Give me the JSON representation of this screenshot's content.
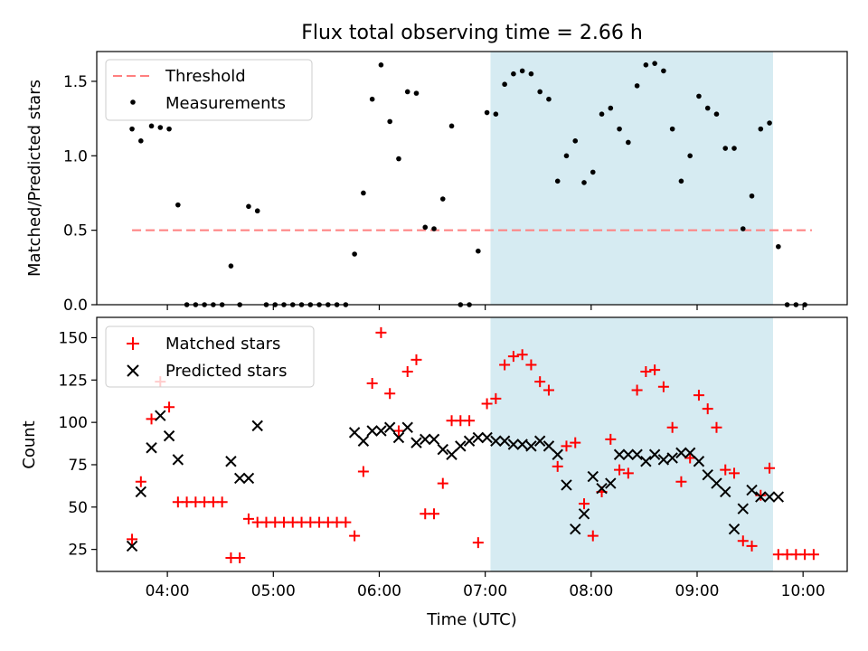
{
  "chart_data": [
    {
      "type": "scatter",
      "title": "Flux total observing time = 2.66 h",
      "xlabel": "",
      "ylabel": "Matched/Predicted stars",
      "x_unit": "time (UTC, hours)",
      "xlim": [
        "03:20",
        "10:25"
      ],
      "ylim": [
        0,
        1.7
      ],
      "yticks": [
        0.0,
        0.5,
        1.0,
        1.5
      ],
      "ytick_labels": [
        "0.0",
        "0.5",
        "1.0",
        "1.5"
      ],
      "highlight_span": {
        "x": [
          "07:03",
          "09:43"
        ],
        "color": "#add8e6"
      },
      "legend_position": "upper-left",
      "series": [
        {
          "name": "Threshold",
          "style": "dashed-line",
          "color": "#ff7f7f",
          "x": [
            "03:40",
            "10:05"
          ],
          "y": [
            0.5,
            0.5
          ]
        },
        {
          "name": "Measurements",
          "style": "dot",
          "color": "#000000",
          "x": [
            "03:40",
            "03:45",
            "03:51",
            "03:56",
            "04:01",
            "04:06",
            "04:11",
            "04:16",
            "04:21",
            "04:26",
            "04:31",
            "04:36",
            "04:41",
            "04:46",
            "04:51",
            "04:56",
            "05:01",
            "05:06",
            "05:11",
            "05:16",
            "05:21",
            "05:26",
            "05:31",
            "05:36",
            "05:41",
            "05:46",
            "05:51",
            "05:56",
            "06:01",
            "06:06",
            "06:11",
            "06:16",
            "06:21",
            "06:26",
            "06:31",
            "06:36",
            "06:41",
            "06:46",
            "06:51",
            "06:56",
            "07:01",
            "07:06",
            "07:11",
            "07:16",
            "07:21",
            "07:26",
            "07:31",
            "07:36",
            "07:41",
            "07:46",
            "07:51",
            "07:56",
            "08:01",
            "08:06",
            "08:11",
            "08:16",
            "08:21",
            "08:26",
            "08:31",
            "08:36",
            "08:41",
            "08:46",
            "08:51",
            "08:56",
            "09:01",
            "09:06",
            "09:11",
            "09:16",
            "09:21",
            "09:26",
            "09:31",
            "09:36",
            "09:41",
            "09:46",
            "09:51",
            "09:56",
            "10:01"
          ],
          "y": [
            1.18,
            1.1,
            1.2,
            1.19,
            1.18,
            0.67,
            0.0,
            0.0,
            0.0,
            0.0,
            0.0,
            0.26,
            0.0,
            0.66,
            0.63,
            0.0,
            0.0,
            0.0,
            0.0,
            0.0,
            0.0,
            0.0,
            0.0,
            0.0,
            0.0,
            0.34,
            0.75,
            1.38,
            1.61,
            1.23,
            0.98,
            1.43,
            1.42,
            0.52,
            0.51,
            0.71,
            1.2,
            0.0,
            0.0,
            0.36,
            1.29,
            1.28,
            1.48,
            1.55,
            1.57,
            1.55,
            1.43,
            1.38,
            0.83,
            1.0,
            1.1,
            0.82,
            0.89,
            1.28,
            1.32,
            1.18,
            1.09,
            1.47,
            1.61,
            1.62,
            1.57,
            1.18,
            0.83,
            1.0,
            1.4,
            1.32,
            1.28,
            1.05,
            1.05,
            0.51,
            0.73,
            1.18,
            1.22,
            0.39,
            0.0,
            0.0,
            0.0
          ]
        }
      ]
    },
    {
      "type": "scatter",
      "title": "",
      "xlabel": "Time (UTC)",
      "ylabel": "Count",
      "x_unit": "time (UTC, hours)",
      "xlim": [
        "03:20",
        "10:25"
      ],
      "ylim": [
        12,
        162
      ],
      "yticks": [
        25,
        50,
        75,
        100,
        125,
        150
      ],
      "ytick_labels": [
        "25",
        "50",
        "75",
        "100",
        "125",
        "150"
      ],
      "xticks": [
        "04:00",
        "05:00",
        "06:00",
        "07:00",
        "08:00",
        "09:00",
        "10:00"
      ],
      "xtick_labels": [
        "04:00",
        "05:00",
        "06:00",
        "07:00",
        "08:00",
        "09:00",
        "10:00"
      ],
      "highlight_span": {
        "x": [
          "07:03",
          "09:43"
        ],
        "color": "#add8e6"
      },
      "legend_position": "upper-left",
      "series": [
        {
          "name": "Matched stars",
          "marker": "plus",
          "color": "#ff0000",
          "x": [
            "03:40",
            "03:45",
            "03:51",
            "03:56",
            "04:01",
            "04:06",
            "04:11",
            "04:16",
            "04:21",
            "04:26",
            "04:31",
            "04:36",
            "04:41",
            "04:46",
            "04:51",
            "04:56",
            "05:01",
            "05:06",
            "05:11",
            "05:16",
            "05:21",
            "05:26",
            "05:31",
            "05:36",
            "05:41",
            "05:46",
            "05:51",
            "05:56",
            "06:01",
            "06:06",
            "06:11",
            "06:16",
            "06:21",
            "06:26",
            "06:31",
            "06:36",
            "06:41",
            "06:46",
            "06:51",
            "06:56",
            "07:01",
            "07:06",
            "07:11",
            "07:16",
            "07:21",
            "07:26",
            "07:31",
            "07:36",
            "07:41",
            "07:46",
            "07:51",
            "07:56",
            "08:01",
            "08:06",
            "08:11",
            "08:16",
            "08:21",
            "08:26",
            "08:31",
            "08:36",
            "08:41",
            "08:46",
            "08:51",
            "08:56",
            "09:01",
            "09:06",
            "09:11",
            "09:16",
            "09:21",
            "09:26",
            "09:31",
            "09:36",
            "09:41",
            "09:46",
            "09:51",
            "09:56",
            "10:01",
            "10:06"
          ],
          "y": [
            31,
            65,
            102,
            124,
            109,
            53,
            53,
            53,
            53,
            53,
            53,
            20,
            20,
            43,
            41,
            41,
            41,
            41,
            41,
            41,
            41,
            41,
            41,
            41,
            41,
            33,
            71,
            123,
            153,
            117,
            95,
            130,
            137,
            46,
            46,
            64,
            101,
            101,
            101,
            29,
            111,
            114,
            134,
            139,
            140,
            134,
            124,
            119,
            74,
            86,
            88,
            52,
            33,
            59,
            90,
            72,
            70,
            119,
            130,
            131,
            121,
            97,
            65,
            79,
            116,
            108,
            97,
            72,
            70,
            30,
            27,
            57,
            73,
            22,
            22,
            22,
            22,
            22
          ]
        },
        {
          "name": "Predicted stars",
          "marker": "x",
          "color": "#000000",
          "x": [
            "03:40",
            "03:45",
            "03:51",
            "03:56",
            "04:01",
            "04:06",
            "04:36",
            "04:41",
            "04:46",
            "04:51",
            "05:46",
            "05:51",
            "05:56",
            "06:01",
            "06:06",
            "06:11",
            "06:16",
            "06:21",
            "06:26",
            "06:31",
            "06:36",
            "06:41",
            "06:46",
            "06:51",
            "06:56",
            "07:01",
            "07:06",
            "07:11",
            "07:16",
            "07:21",
            "07:26",
            "07:31",
            "07:36",
            "07:41",
            "07:46",
            "07:51",
            "07:56",
            "08:01",
            "08:06",
            "08:11",
            "08:16",
            "08:21",
            "08:26",
            "08:31",
            "08:36",
            "08:41",
            "08:46",
            "08:51",
            "08:56",
            "09:01",
            "09:06",
            "09:11",
            "09:16",
            "09:21",
            "09:26",
            "09:31",
            "09:36",
            "09:41",
            "09:46"
          ],
          "y": [
            27,
            59,
            85,
            104,
            92,
            78,
            77,
            67,
            67,
            98,
            94,
            89,
            95,
            95,
            97,
            91,
            97,
            88,
            90,
            90,
            84,
            81,
            86,
            89,
            91,
            91,
            89,
            89,
            87,
            87,
            86,
            89,
            86,
            81,
            63,
            37,
            46,
            68,
            61,
            64,
            81,
            81,
            81,
            77,
            81,
            78,
            79,
            82,
            82,
            77,
            69,
            64,
            59,
            37,
            49,
            60,
            56,
            56,
            56
          ]
        }
      ]
    }
  ]
}
